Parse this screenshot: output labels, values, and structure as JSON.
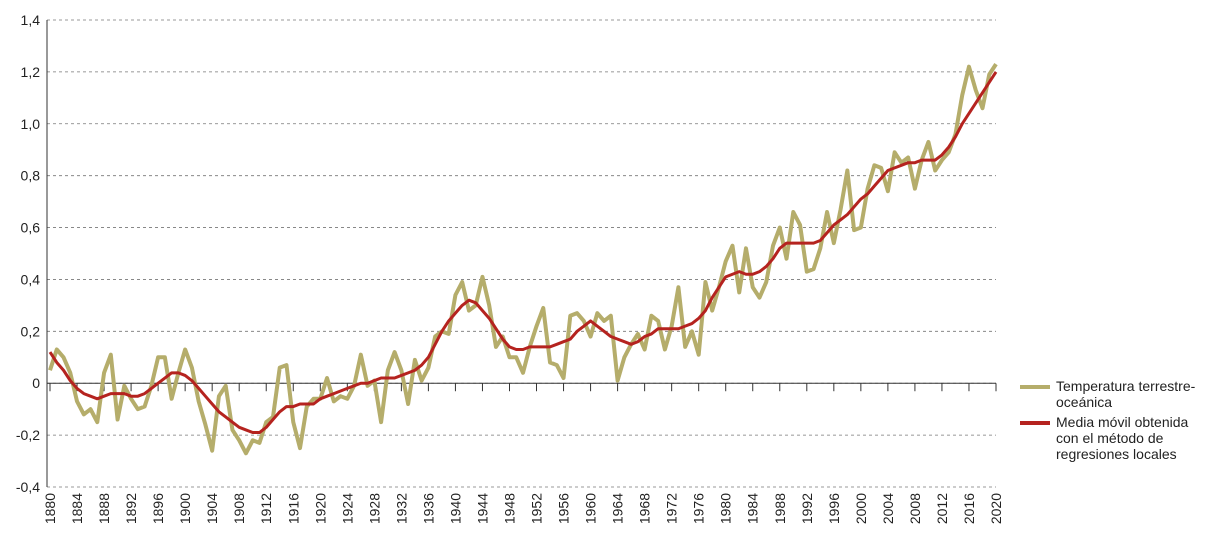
{
  "chart_data": {
    "type": "line",
    "xlim": [
      1880,
      2020
    ],
    "xticks": [
      1880,
      1884,
      1888,
      1892,
      1896,
      1900,
      1904,
      1908,
      1912,
      1916,
      1920,
      1924,
      1928,
      1932,
      1936,
      1940,
      1944,
      1948,
      1952,
      1956,
      1960,
      1964,
      1968,
      1972,
      1976,
      1980,
      1984,
      1988,
      1992,
      1996,
      2000,
      2004,
      2008,
      2012,
      2016,
      2020
    ],
    "ylim": [
      -0.4,
      1.4
    ],
    "yticks": [
      {
        "value": -0.4,
        "label": "-0,4"
      },
      {
        "value": -0.2,
        "label": "-0,2"
      },
      0,
      {
        "value": 0.2,
        "label": "0,2"
      },
      {
        "value": 0.4,
        "label": "0,4"
      },
      {
        "value": 0.6,
        "label": "0,6"
      },
      {
        "value": 0.8,
        "label": "0,8"
      },
      {
        "value": 1.0,
        "label": "1,0"
      },
      {
        "value": 1.2,
        "label": "1,2"
      },
      {
        "value": 1.4,
        "label": "1,4"
      }
    ],
    "grid": true,
    "legend": "right",
    "x": [
      1880,
      1881,
      1882,
      1883,
      1884,
      1885,
      1886,
      1887,
      1888,
      1889,
      1890,
      1891,
      1892,
      1893,
      1894,
      1895,
      1896,
      1897,
      1898,
      1899,
      1900,
      1901,
      1902,
      1903,
      1904,
      1905,
      1906,
      1907,
      1908,
      1909,
      1910,
      1911,
      1912,
      1913,
      1914,
      1915,
      1916,
      1917,
      1918,
      1919,
      1920,
      1921,
      1922,
      1923,
      1924,
      1925,
      1926,
      1927,
      1928,
      1929,
      1930,
      1931,
      1932,
      1933,
      1934,
      1935,
      1936,
      1937,
      1938,
      1939,
      1940,
      1941,
      1942,
      1943,
      1944,
      1945,
      1946,
      1947,
      1948,
      1949,
      1950,
      1951,
      1952,
      1953,
      1954,
      1955,
      1956,
      1957,
      1958,
      1959,
      1960,
      1961,
      1962,
      1963,
      1964,
      1965,
      1966,
      1967,
      1968,
      1969,
      1970,
      1971,
      1972,
      1973,
      1974,
      1975,
      1976,
      1977,
      1978,
      1979,
      1980,
      1981,
      1982,
      1983,
      1984,
      1985,
      1986,
      1987,
      1988,
      1989,
      1990,
      1991,
      1992,
      1993,
      1994,
      1995,
      1996,
      1997,
      1998,
      1999,
      2000,
      2001,
      2002,
      2003,
      2004,
      2005,
      2006,
      2007,
      2008,
      2009,
      2010,
      2011,
      2012,
      2013,
      2014,
      2015,
      2016,
      2017,
      2018,
      2019,
      2020
    ],
    "series": [
      {
        "name": "Temperatura terrestre-oceánica",
        "color": "#b5ad6b",
        "width": 4,
        "values": [
          0.05,
          0.13,
          0.1,
          0.04,
          -0.07,
          -0.12,
          -0.1,
          -0.15,
          0.04,
          0.11,
          -0.14,
          -0.01,
          -0.06,
          -0.1,
          -0.09,
          -0.01,
          0.1,
          0.1,
          -0.06,
          0.04,
          0.13,
          0.06,
          -0.07,
          -0.16,
          -0.26,
          -0.05,
          -0.01,
          -0.18,
          -0.22,
          -0.27,
          -0.22,
          -0.23,
          -0.15,
          -0.13,
          0.06,
          0.07,
          -0.15,
          -0.25,
          -0.09,
          -0.06,
          -0.06,
          0.02,
          -0.07,
          -0.05,
          -0.06,
          -0.01,
          0.11,
          -0.01,
          0.01,
          -0.15,
          0.05,
          0.12,
          0.05,
          -0.08,
          0.09,
          0.01,
          0.06,
          0.18,
          0.2,
          0.19,
          0.34,
          0.39,
          0.28,
          0.3,
          0.41,
          0.3,
          0.14,
          0.18,
          0.1,
          0.1,
          0.04,
          0.14,
          0.22,
          0.29,
          0.08,
          0.07,
          0.02,
          0.26,
          0.27,
          0.24,
          0.18,
          0.27,
          0.24,
          0.26,
          0.01,
          0.1,
          0.15,
          0.19,
          0.13,
          0.26,
          0.24,
          0.13,
          0.22,
          0.37,
          0.14,
          0.2,
          0.11,
          0.39,
          0.28,
          0.37,
          0.47,
          0.53,
          0.35,
          0.52,
          0.37,
          0.33,
          0.39,
          0.53,
          0.6,
          0.48,
          0.66,
          0.61,
          0.43,
          0.44,
          0.52,
          0.66,
          0.54,
          0.67,
          0.82,
          0.59,
          0.6,
          0.75,
          0.84,
          0.83,
          0.74,
          0.89,
          0.85,
          0.87,
          0.75,
          0.86,
          0.93,
          0.82,
          0.86,
          0.89,
          0.96,
          1.11,
          1.22,
          1.13,
          1.06,
          1.19,
          1.23
        ]
      },
      {
        "name": "Media móvil obtenida con el método de regresiones locales",
        "color": "#b5231f",
        "width": 3,
        "values": [
          0.12,
          0.08,
          0.05,
          0.01,
          -0.02,
          -0.04,
          -0.05,
          -0.06,
          -0.05,
          -0.04,
          -0.04,
          -0.04,
          -0.05,
          -0.05,
          -0.04,
          -0.02,
          0.0,
          0.02,
          0.04,
          0.04,
          0.03,
          0.01,
          -0.02,
          -0.05,
          -0.08,
          -0.11,
          -0.13,
          -0.15,
          -0.17,
          -0.18,
          -0.19,
          -0.19,
          -0.17,
          -0.14,
          -0.11,
          -0.09,
          -0.09,
          -0.08,
          -0.08,
          -0.08,
          -0.06,
          -0.05,
          -0.04,
          -0.03,
          -0.02,
          -0.01,
          0.0,
          0.0,
          0.01,
          0.02,
          0.02,
          0.02,
          0.03,
          0.04,
          0.05,
          0.07,
          0.1,
          0.15,
          0.2,
          0.24,
          0.27,
          0.3,
          0.32,
          0.31,
          0.28,
          0.25,
          0.21,
          0.17,
          0.14,
          0.13,
          0.13,
          0.14,
          0.14,
          0.14,
          0.14,
          0.15,
          0.16,
          0.17,
          0.2,
          0.22,
          0.24,
          0.22,
          0.2,
          0.18,
          0.17,
          0.16,
          0.15,
          0.16,
          0.18,
          0.19,
          0.21,
          0.21,
          0.21,
          0.21,
          0.22,
          0.23,
          0.25,
          0.28,
          0.33,
          0.37,
          0.41,
          0.42,
          0.43,
          0.42,
          0.42,
          0.43,
          0.45,
          0.48,
          0.52,
          0.54,
          0.54,
          0.54,
          0.54,
          0.54,
          0.55,
          0.58,
          0.61,
          0.63,
          0.65,
          0.68,
          0.71,
          0.73,
          0.76,
          0.79,
          0.82,
          0.83,
          0.84,
          0.85,
          0.85,
          0.86,
          0.86,
          0.86,
          0.88,
          0.91,
          0.95,
          1.0,
          1.04,
          1.08,
          1.12,
          1.16,
          1.2
        ]
      }
    ]
  }
}
